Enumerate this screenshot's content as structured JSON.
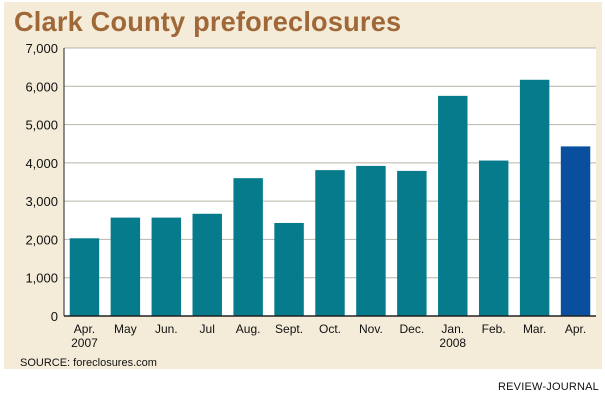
{
  "header": {
    "title": "Clark County preforeclosures"
  },
  "footer": {
    "source": "SOURCE: foreclosures.com",
    "credit": "REVIEW-JOURNAL"
  },
  "colors": {
    "background": "#f4ecd9",
    "bar": "#057b8c",
    "highlight": "#0a4f9e",
    "title": "#a06838"
  },
  "chart_data": {
    "type": "bar",
    "title": "Clark County preforeclosures",
    "categories": [
      "Apr.",
      "May",
      "Jun.",
      "Jul",
      "Aug.",
      "Sept.",
      "Oct.",
      "Nov.",
      "Dec.",
      "Jan.",
      "Feb.",
      "Mar.",
      "Apr."
    ],
    "category_sublabels": [
      "2007",
      "",
      "",
      "",
      "",
      "",
      "",
      "",
      "",
      "2008",
      "",
      "",
      ""
    ],
    "values": [
      2030,
      2570,
      2570,
      2670,
      3600,
      2430,
      3810,
      3920,
      3790,
      5750,
      4060,
      6170,
      4430
    ],
    "highlight_index": 12,
    "ylim": [
      0,
      7000
    ],
    "yticks": [
      0,
      1000,
      2000,
      3000,
      4000,
      5000,
      6000,
      7000
    ],
    "ytick_labels": [
      "0",
      "1,000",
      "2,000",
      "3,000",
      "4,000",
      "5,000",
      "6,000",
      "7,000"
    ],
    "xlabel": "",
    "ylabel": "",
    "grid": true
  }
}
